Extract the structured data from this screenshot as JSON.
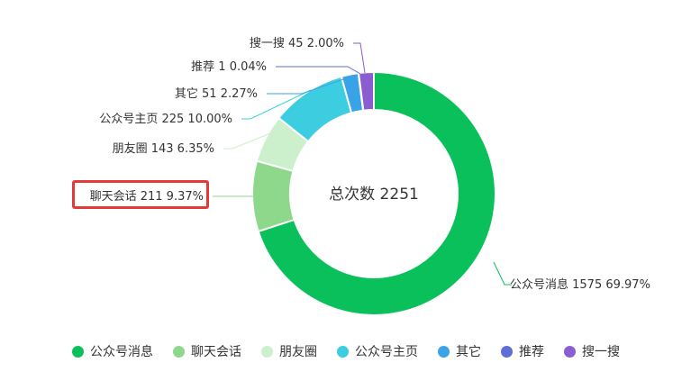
{
  "chart_data": {
    "type": "pie",
    "center_text": "总次数 2251",
    "slices": [
      {
        "name": "公众号消息",
        "count": 1575,
        "percent": "69.97%",
        "color": "#0ac05b"
      },
      {
        "name": "聊天会话",
        "count": 211,
        "percent": "9.37%",
        "color": "#8ed88b"
      },
      {
        "name": "朋友圈",
        "count": 143,
        "percent": "6.35%",
        "color": "#ccefcc"
      },
      {
        "name": "公众号主页",
        "count": 225,
        "percent": "10.00%",
        "color": "#3ccde1"
      },
      {
        "name": "其它",
        "count": 51,
        "percent": "2.27%",
        "color": "#3aa2e6"
      },
      {
        "name": "推荐",
        "count": 1,
        "percent": "0.04%",
        "color": "#5d6fd6"
      },
      {
        "name": "搜一搜",
        "count": 45,
        "percent": "2.00%",
        "color": "#8a5ed0"
      }
    ],
    "labels": [
      {
        "text": "公众号消息 1575 69.97%"
      },
      {
        "text": "聊天会话 211 9.37%"
      },
      {
        "text": "朋友圈 143 6.35%"
      },
      {
        "text": "公众号主页 225 10.00%"
      },
      {
        "text": "其它 51 2.27%"
      },
      {
        "text": "推荐 1 0.04%"
      },
      {
        "text": "搜一搜 45 2.00%"
      }
    ],
    "legend": [
      "公众号消息",
      "聊天会话",
      "朋友圈",
      "公众号主页",
      "其它",
      "推荐",
      "搜一搜"
    ],
    "highlighted": "聊天会话"
  }
}
